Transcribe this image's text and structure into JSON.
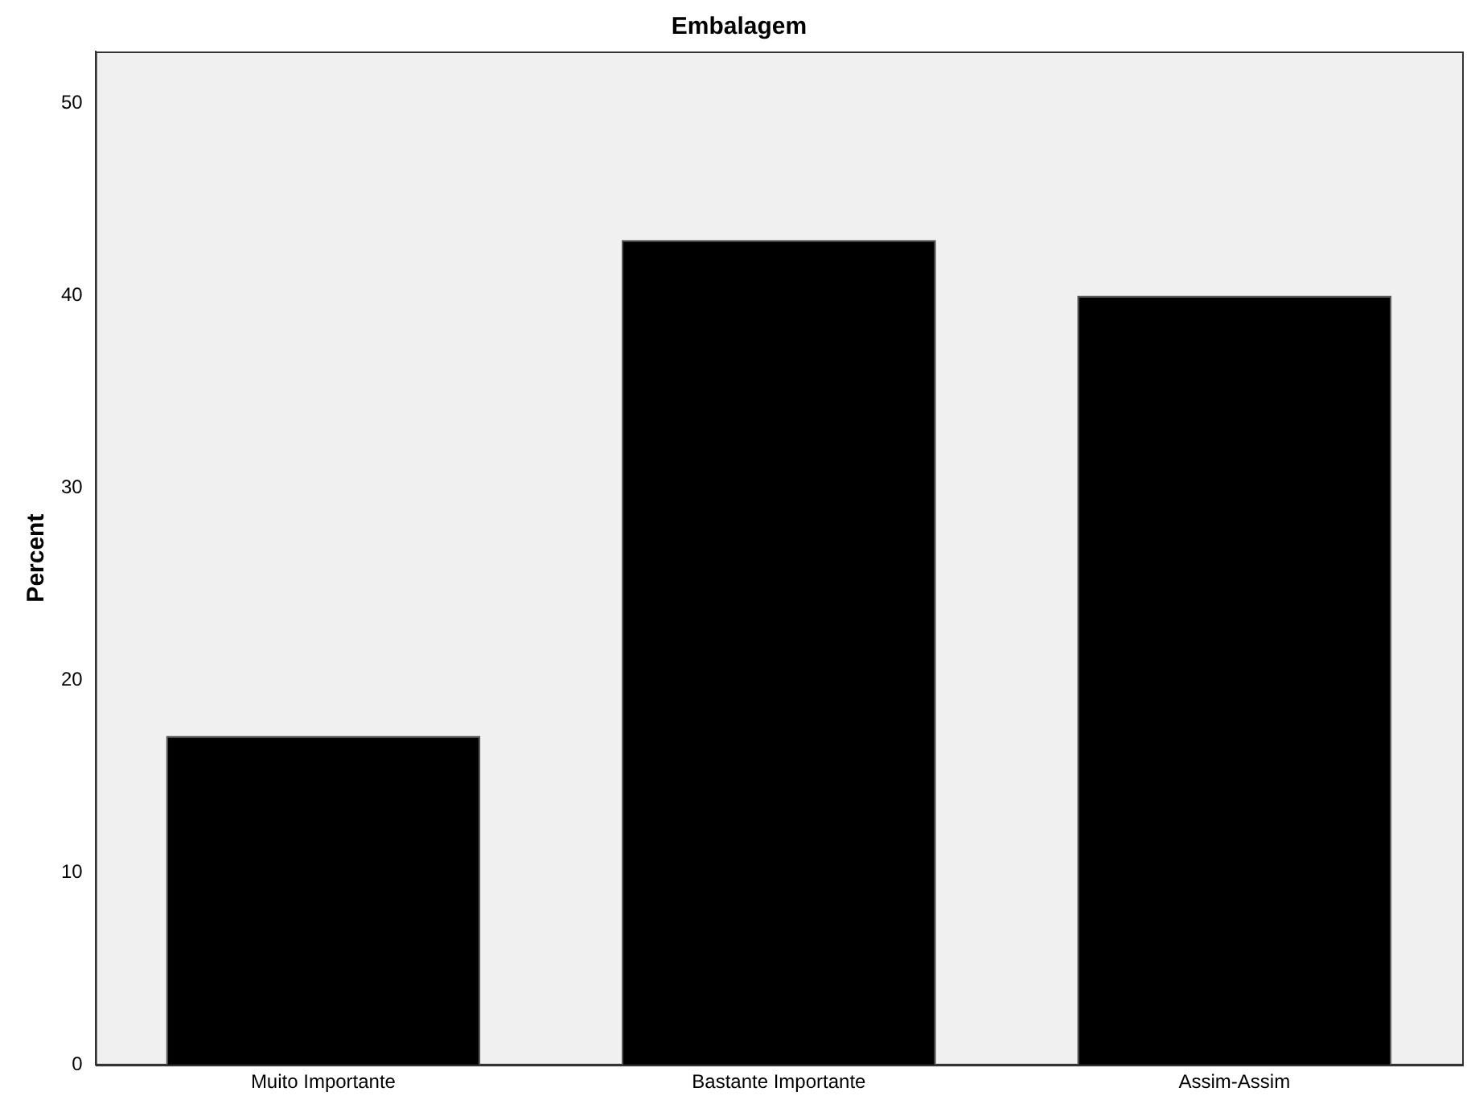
{
  "chart_data": {
    "type": "bar",
    "title": "Embalagem",
    "ylabel": "Percent",
    "categories": [
      "Muito Importante",
      "Bastante Importante",
      "Assim-Assim"
    ],
    "values": [
      17.1,
      42.9,
      40.0
    ],
    "color": "#000000",
    "ylim": [
      0,
      52.7
    ],
    "yticks": [
      0,
      10,
      20,
      30,
      40,
      50
    ],
    "grid": false
  }
}
